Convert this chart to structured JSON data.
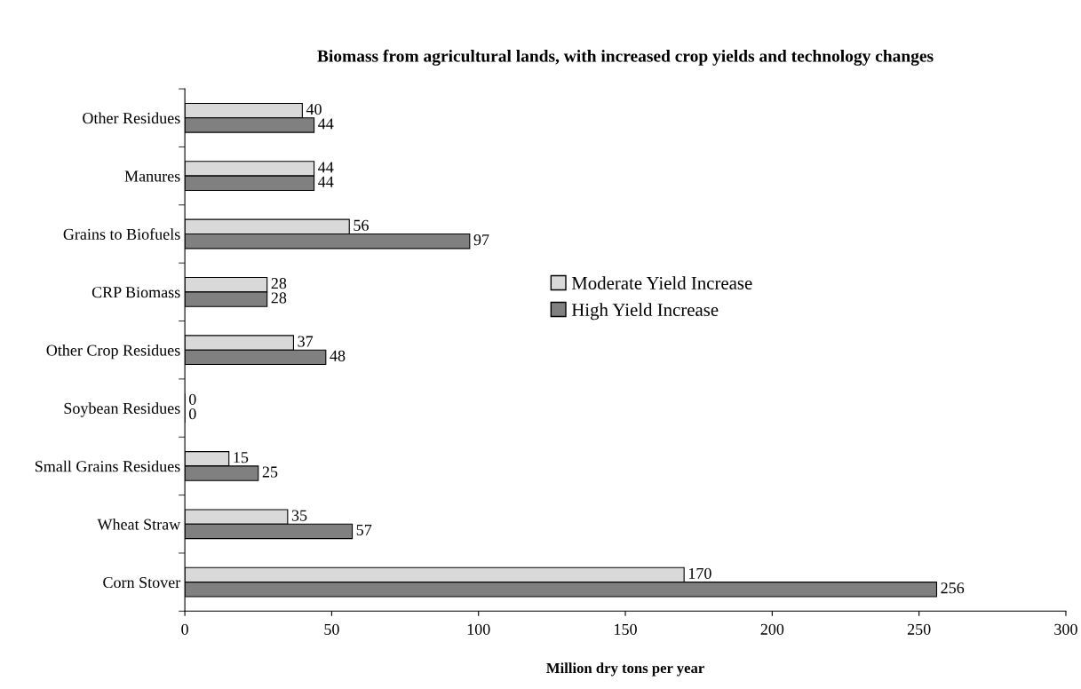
{
  "chart_data": {
    "type": "bar",
    "orientation": "horizontal",
    "title": "Biomass from agricultural lands, with increased crop yields and technology changes",
    "xlabel": "Million dry tons per year",
    "categories": [
      "Other Residues",
      "Manures",
      "Grains to Biofuels",
      "CRP Biomass",
      "Other Crop Residues",
      "Soybean Residues",
      "Small Grains Residues",
      "Wheat Straw",
      "Corn Stover"
    ],
    "series": [
      {
        "name": "Moderate Yield Increase",
        "color": "#d9d9d9",
        "values": [
          40,
          44,
          56,
          28,
          37,
          0,
          15,
          35,
          170
        ]
      },
      {
        "name": "High Yield Increase",
        "color": "#808080",
        "values": [
          44,
          44,
          97,
          28,
          48,
          0,
          25,
          57,
          256
        ]
      }
    ],
    "xlim": [
      0,
      300
    ],
    "xticks": [
      0,
      50,
      100,
      150,
      200,
      250,
      300
    ],
    "data_labels": true,
    "grid": false,
    "legend": "center"
  }
}
